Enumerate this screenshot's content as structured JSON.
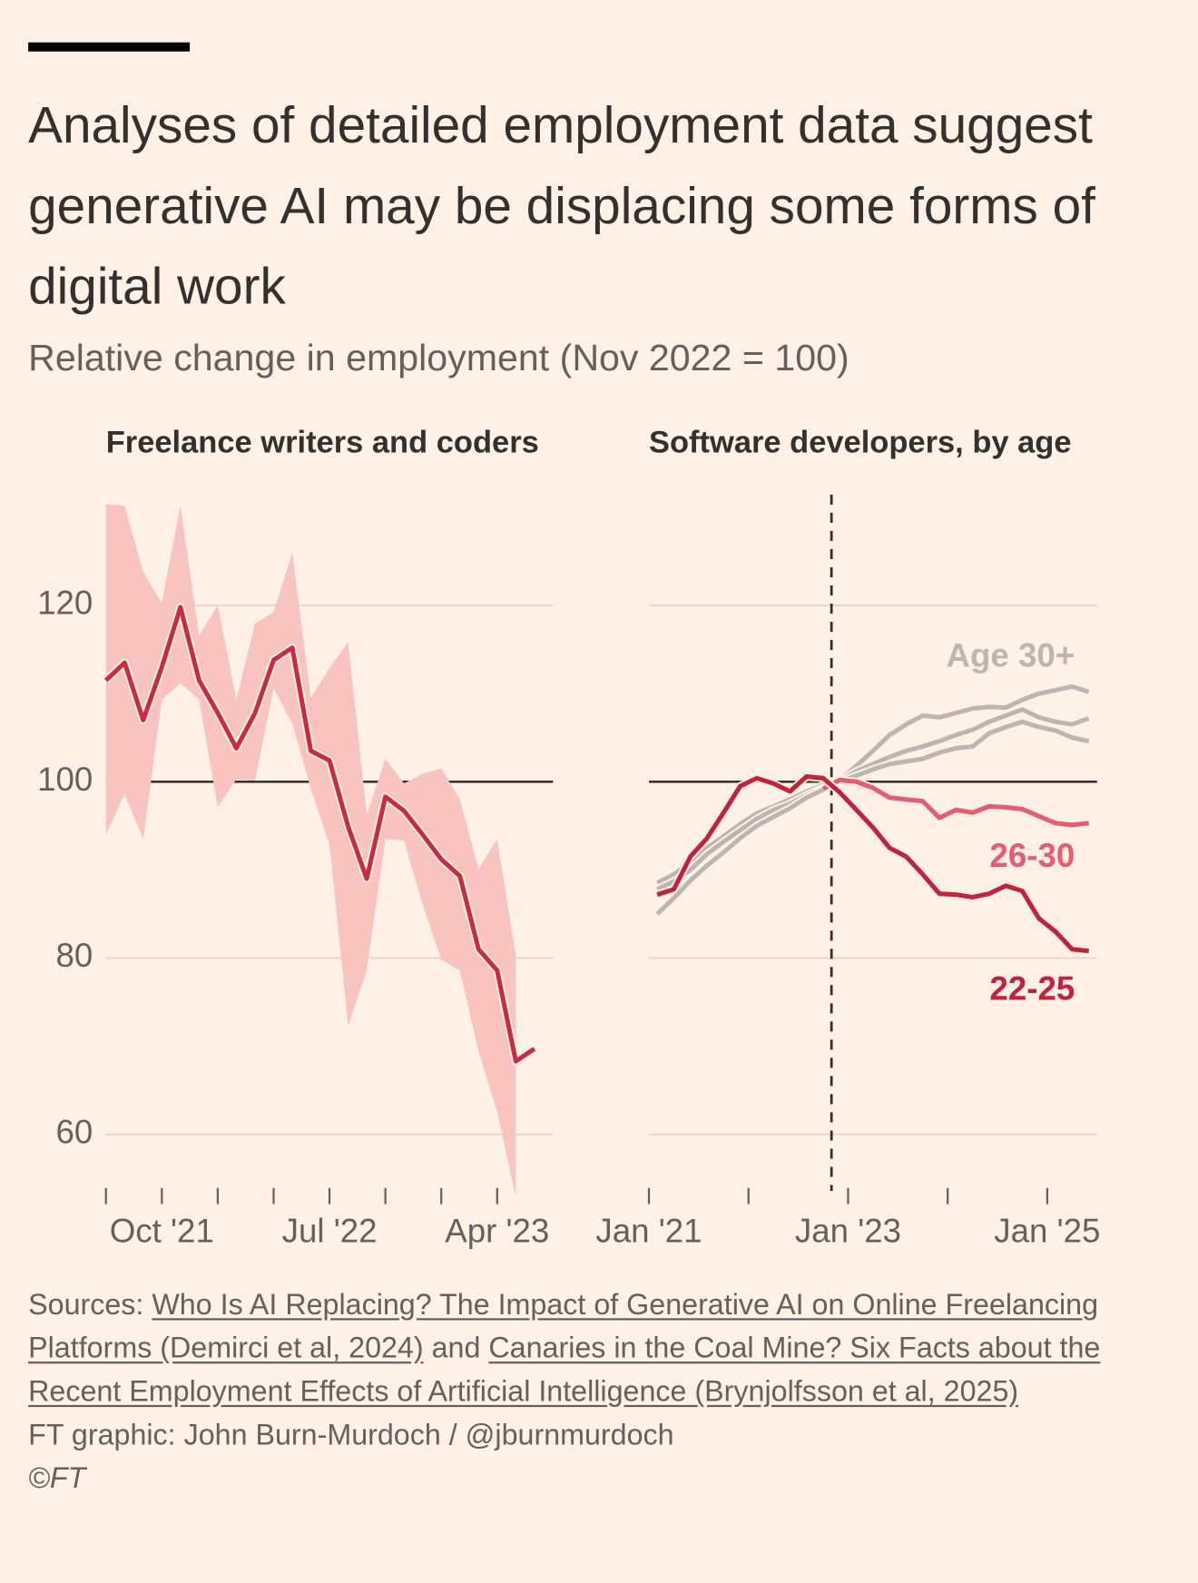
{
  "title": "Analyses of detailed employment data suggest generative AI may be displacing some forms of digital work",
  "subtitle": "Relative change in employment (Nov 2022 = 100)",
  "chart_data": [
    {
      "type": "line",
      "title": "Freelance writers and coders",
      "x": [
        "2021-07",
        "2021-08",
        "2021-09",
        "2021-10",
        "2021-11",
        "2021-12",
        "2022-01",
        "2022-02",
        "2022-03",
        "2022-04",
        "2022-05",
        "2022-06",
        "2022-07",
        "2022-08",
        "2022-09",
        "2022-10",
        "2022-11",
        "2022-12",
        "2023-01",
        "2023-02",
        "2023-03",
        "2023-04",
        "2023-05",
        "2023-06"
      ],
      "series": [
        {
          "color": "#cc2b3f",
          "band_color": "#f9c3c0",
          "values": [
            111.5,
            113.5,
            107,
            113,
            119.8,
            111.5,
            107.8,
            103.8,
            107.8,
            113.8,
            115.2,
            103.5,
            102.4,
            94.9,
            89,
            98.3,
            96.7,
            94,
            91.2,
            89.3,
            81,
            78.6,
            68.3,
            69.7
          ],
          "upper": [
            131.5,
            131.3,
            123.8,
            120.3,
            131.3,
            116.6,
            120,
            109.3,
            118,
            119.2,
            126,
            109.5,
            112.9,
            115.8,
            96.3,
            102.6,
            99.8,
            100.9,
            101.5,
            98,
            90.1,
            93.5,
            80.3,
            null
          ],
          "lower": [
            94,
            98.6,
            93.5,
            109.3,
            111.2,
            109.3,
            97.1,
            100.3,
            100.1,
            110.6,
            106.6,
            99.2,
            92.9,
            72.3,
            78.6,
            93.5,
            93.3,
            86.1,
            79.8,
            78.6,
            69.4,
            62.6,
            52.9,
            null
          ]
        }
      ],
      "xlim": [
        "2021-07",
        "2023-07"
      ],
      "xticks": [
        {
          "value": "2021-10",
          "label": "Oct '21"
        },
        {
          "value": "2022-07",
          "label": "Jul '22"
        },
        {
          "value": "2023-04",
          "label": "Apr '23"
        }
      ],
      "xminorticks": [
        "2021-07",
        "2022-01",
        "2022-04",
        "2022-10",
        "2023-01"
      ],
      "ylim": [
        53,
        132
      ],
      "yticks": [
        60,
        80,
        100,
        120
      ],
      "hline": 100,
      "grid": true
    },
    {
      "type": "line",
      "title": "Software developers, by age",
      "x": [
        "2021-02",
        "2021-04",
        "2021-06",
        "2021-08",
        "2021-10",
        "2021-12",
        "2022-02",
        "2022-04",
        "2022-06",
        "2022-08",
        "2022-10",
        "2022-12",
        "2023-02",
        "2023-04",
        "2023-06",
        "2023-08",
        "2023-10",
        "2023-12",
        "2024-02",
        "2024-04",
        "2024-06",
        "2024-08",
        "2024-10",
        "2024-12",
        "2025-02",
        "2025-04",
        "2025-06"
      ],
      "series": [
        {
          "name": "Age 30+",
          "color": "#bdb6b0",
          "values": [
            88.5,
            89.5,
            90.8,
            92.5,
            93.8,
            95.2,
            96.4,
            97.2,
            98.0,
            98.9,
            99.6,
            100.2,
            101.8,
            103.5,
            105.3,
            106.5,
            107.5,
            107.3,
            107.8,
            108.3,
            108.5,
            108.4,
            109.3,
            110.0,
            110.4,
            110.8,
            110.2
          ]
        },
        {
          "color": "#bdb6b0",
          "values": [
            87.8,
            88.7,
            90.0,
            91.8,
            93.2,
            94.5,
            95.8,
            96.8,
            97.5,
            98.5,
            99.3,
            100.1,
            101.2,
            102.0,
            102.8,
            103.5,
            104.0,
            104.6,
            105.3,
            105.9,
            106.8,
            107.5,
            108.2,
            107.3,
            106.8,
            106.5,
            107.2
          ]
        },
        {
          "color": "#bdb6b0",
          "values": [
            85.0,
            86.8,
            88.8,
            90.5,
            92.0,
            93.6,
            95.0,
            96.0,
            97.0,
            98.2,
            99.1,
            100.0,
            100.7,
            101.4,
            102.0,
            102.3,
            102.6,
            103.3,
            103.8,
            104.0,
            105.5,
            106.2,
            106.8,
            106.2,
            105.8,
            105.0,
            104.6
          ]
        },
        {
          "name": "26-30",
          "color": "#ea5a70",
          "values": [
            null,
            null,
            null,
            null,
            null,
            null,
            null,
            null,
            null,
            null,
            99.2,
            100.2,
            100.0,
            99.3,
            98.2,
            98.0,
            97.8,
            95.9,
            96.8,
            96.5,
            97.2,
            97.1,
            96.9,
            96.1,
            95.3,
            95.1,
            95.3
          ]
        },
        {
          "name": "22-25",
          "color": "#c4213a",
          "values": [
            87.2,
            87.8,
            91.5,
            93.6,
            96.5,
            99.5,
            100.4,
            99.8,
            98.9,
            100.6,
            100.4,
            98.8,
            96.8,
            94.8,
            92.5,
            91.5,
            89.5,
            87.3,
            87.2,
            86.9,
            87.3,
            88.2,
            87.6,
            84.5,
            83.0,
            81.0,
            80.8
          ]
        }
      ],
      "xlim": [
        "2021-01",
        "2025-07"
      ],
      "xticks": [
        {
          "value": "2021-01",
          "label": "Jan '21"
        },
        {
          "value": "2023-01",
          "label": "Jan '23"
        },
        {
          "value": "2025-01",
          "label": "Jan '25"
        }
      ],
      "xminorticks": [
        "2022-01",
        "2024-01"
      ],
      "ylim": [
        53,
        132
      ],
      "yticks": [
        60,
        80,
        100,
        120
      ],
      "hline": 100,
      "vline": "2022-11",
      "grid": true
    }
  ],
  "sources": {
    "prefix": "Sources:",
    "links": [
      "Who Is AI Replacing? The Impact of Generative AI on Online Freelancing Platforms (Demirci et al, 2024)",
      "Canaries in the Coal Mine? Six Facts about the Recent Employment Effects of Artificial Intelligence (Brynjolfsson et al, 2025)"
    ],
    "conjunction": "and"
  },
  "credit": "FT graphic: John Burn-Murdoch / @jburnmurdoch",
  "copyright": "©FT"
}
